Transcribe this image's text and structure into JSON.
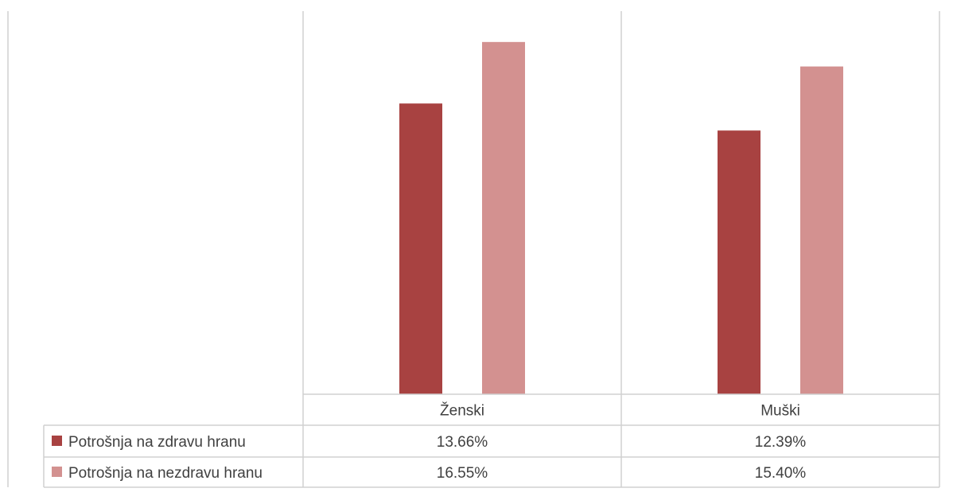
{
  "chart_data": {
    "type": "bar",
    "title": "",
    "xlabel": "",
    "ylabel": "",
    "categories": [
      "Ženski",
      "Muški"
    ],
    "series": [
      {
        "name": "Potrošnja na zdravu hranu",
        "values": [
          13.66,
          12.39
        ],
        "labels": [
          "13.66%",
          "12.39%"
        ],
        "color": "#a84241"
      },
      {
        "name": "Potrošnja na nezdravu hranu",
        "values": [
          16.55,
          15.4
        ],
        "labels": [
          "16.55%",
          "15.40%"
        ],
        "color": "#d39190"
      }
    ],
    "ylim": [
      0,
      18
    ],
    "grid": false,
    "legend": "data-table",
    "axis_color": "#d0d0d0"
  }
}
